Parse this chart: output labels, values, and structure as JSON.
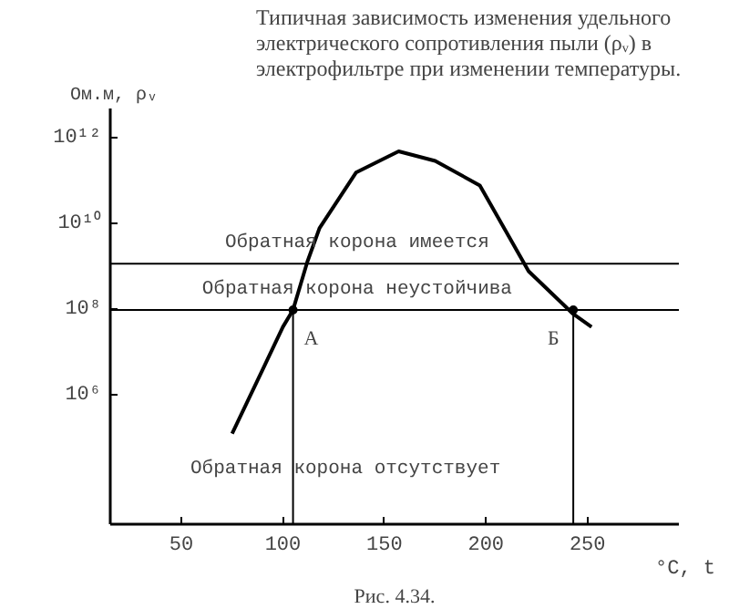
{
  "chart_data": {
    "type": "line",
    "title": "Типичная зависимость изменения удельного\nэлектрического  сопротивления пыли (ρᵥ) в\nэлектрофильтре при изменении температуры.",
    "xlabel": "°C, t",
    "ylabel": "Ом.м, ρᵥ",
    "x": [
      75,
      90,
      100,
      105,
      112,
      118,
      136,
      157,
      175,
      197,
      221,
      243,
      252
    ],
    "series": [
      {
        "color": "#000000",
        "values": [
          130000.0,
          4000000.0,
          40000000.0,
          100000000.0,
          1300000000.0,
          8000000000.0,
          160000000000.0,
          500000000000.0,
          300000000000.0,
          80000000000.0,
          800000000.0,
          80000000.0,
          40000000.0
        ]
      }
    ],
    "log": "y",
    "xlim": [
      15,
      295
    ],
    "ylim": [
      1000.0,
      5000000000000.0
    ],
    "xticks": [
      50,
      100,
      150,
      200,
      250
    ],
    "yticks": [
      {
        "value": 1000000.0,
        "label": "10⁶"
      },
      {
        "value": 100000000.0,
        "label": "10⁸"
      },
      {
        "value": 10000000000.0,
        "label": "10¹⁰"
      },
      {
        "value": 1000000000000.0,
        "label": "10¹²"
      }
    ],
    "ref_lines": [
      {
        "axis": "y",
        "value": 1200000000.0,
        "label": "Обратная    корона имеется"
      },
      {
        "axis": "y",
        "value": 100000000.0,
        "label": "Обратная    корона неустойчива"
      },
      {
        "axis": "x",
        "value": 105
      },
      {
        "axis": "x",
        "value": 243
      }
    ],
    "annotations": [
      {
        "text": "А",
        "x": 105,
        "y": 100000000.0
      },
      {
        "text": "Б",
        "x": 243,
        "y": 100000000.0
      },
      "Обратная    корона   отсутствует",
      "Рис. 4.34."
    ],
    "grid": false,
    "marker": "none",
    "line_style": "solid"
  }
}
